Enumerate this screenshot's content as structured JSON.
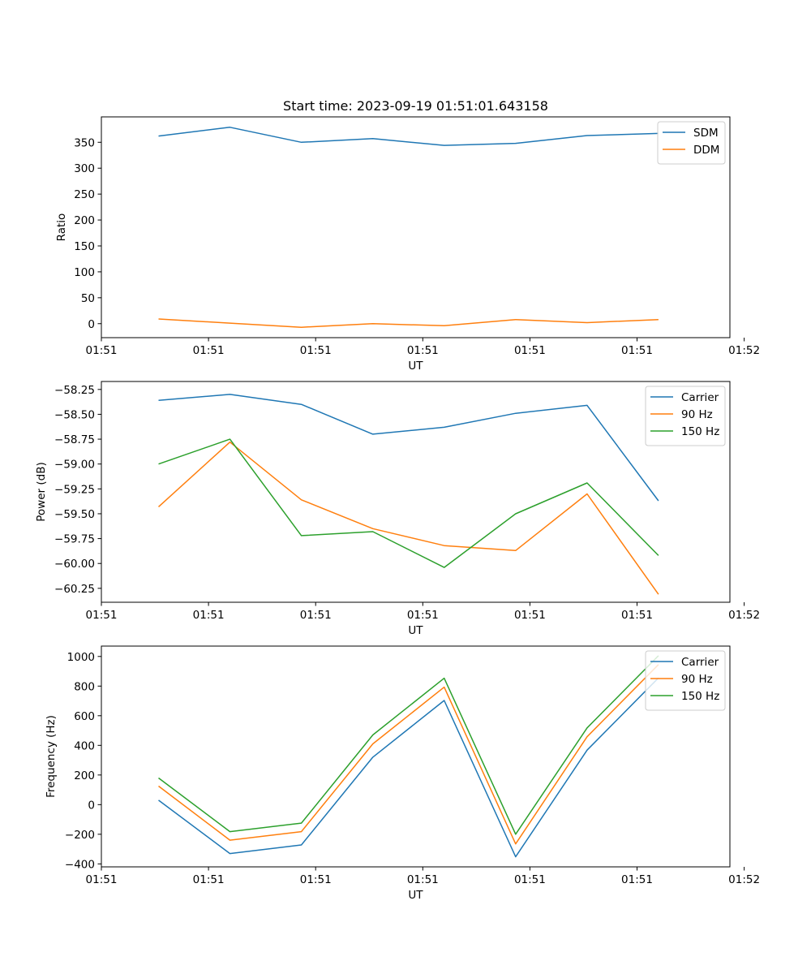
{
  "figure": {
    "title": "Start time: 2023-09-19 01:51:01.643158"
  },
  "colors": {
    "blue": "#1f77b4",
    "orange": "#ff7f0e",
    "green": "#2ca02c"
  },
  "chart_data": [
    {
      "type": "line",
      "id": "ratio",
      "title": "Start time: 2023-09-19 01:51:01.643158",
      "xlabel": "UT",
      "ylabel": "Ratio",
      "x": [
        1,
        2,
        3,
        4,
        5,
        6,
        7,
        8
      ],
      "xlim": [
        0.2,
        9.0
      ],
      "xtick_positions": [
        0.2,
        1.7,
        3.2,
        4.7,
        6.2,
        7.7,
        9.2
      ],
      "xtick_labels": [
        "01:51",
        "01:51",
        "01:51",
        "01:51",
        "01:51",
        "01:51",
        "01:52"
      ],
      "ylim": [
        -27,
        399
      ],
      "yticks": [
        0,
        50,
        100,
        150,
        200,
        250,
        300,
        350
      ],
      "yticks_format": "int",
      "grid": false,
      "legend_position": "top-right",
      "series": [
        {
          "name": "SDM",
          "color_key": "blue",
          "values": [
            362,
            379,
            350,
            357,
            344,
            348,
            363,
            367
          ]
        },
        {
          "name": "DDM",
          "color_key": "orange",
          "values": [
            9,
            1,
            -7,
            0,
            -4,
            8,
            2,
            8
          ]
        }
      ]
    },
    {
      "type": "line",
      "id": "power",
      "xlabel": "UT",
      "ylabel": "Power (dB)",
      "x": [
        1,
        2,
        3,
        4,
        5,
        6,
        7,
        8
      ],
      "xlim": [
        0.2,
        9.0
      ],
      "xtick_positions": [
        0.2,
        1.7,
        3.2,
        4.7,
        6.2,
        7.7,
        9.2
      ],
      "xtick_labels": [
        "01:51",
        "01:51",
        "01:51",
        "01:51",
        "01:51",
        "01:51",
        "01:52"
      ],
      "ylim": [
        -60.39,
        -58.17
      ],
      "yticks": [
        -58.25,
        -58.5,
        -58.75,
        -59.0,
        -59.25,
        -59.5,
        -59.75,
        -60.0,
        -60.25
      ],
      "yticks_format": "dec2",
      "grid": false,
      "legend_position": "top-right",
      "series": [
        {
          "name": "Carrier",
          "color_key": "blue",
          "values": [
            -58.36,
            -58.3,
            -58.4,
            -58.7,
            -58.63,
            -58.49,
            -58.41,
            -59.37
          ]
        },
        {
          "name": "90 Hz",
          "color_key": "orange",
          "values": [
            -59.43,
            -58.78,
            -59.36,
            -59.65,
            -59.82,
            -59.87,
            -59.3,
            -60.31
          ]
        },
        {
          "name": "150 Hz",
          "color_key": "green",
          "values": [
            -59.0,
            -58.75,
            -59.72,
            -59.68,
            -60.04,
            -59.5,
            -59.19,
            -59.92
          ]
        }
      ]
    },
    {
      "type": "line",
      "id": "frequency",
      "xlabel": "UT",
      "ylabel": "Frequency (Hz)",
      "x": [
        1,
        2,
        3,
        4,
        5,
        6,
        7,
        8
      ],
      "xlim": [
        0.2,
        9.0
      ],
      "xtick_positions": [
        0.2,
        1.7,
        3.2,
        4.7,
        6.2,
        7.7,
        9.2
      ],
      "xtick_labels": [
        "01:51",
        "01:51",
        "01:51",
        "01:51",
        "01:51",
        "01:51",
        "01:52"
      ],
      "ylim": [
        -420,
        1070
      ],
      "yticks": [
        -400,
        -200,
        0,
        200,
        400,
        600,
        800,
        1000
      ],
      "yticks_format": "int",
      "grid": false,
      "legend_position": "top-right",
      "series": [
        {
          "name": "Carrier",
          "color_key": "blue",
          "values": [
            30,
            -330,
            -272,
            320,
            703,
            -352,
            368,
            855
          ]
        },
        {
          "name": "90 Hz",
          "color_key": "orange",
          "values": [
            125,
            -240,
            -182,
            410,
            793,
            -265,
            458,
            945
          ]
        },
        {
          "name": "150 Hz",
          "color_key": "green",
          "values": [
            180,
            -182,
            -125,
            470,
            853,
            -200,
            518,
            1005
          ]
        }
      ]
    }
  ]
}
